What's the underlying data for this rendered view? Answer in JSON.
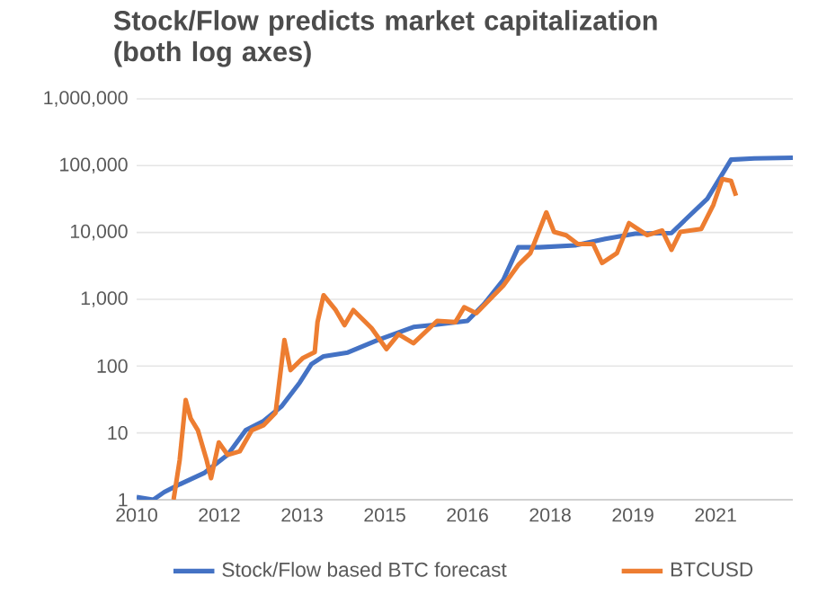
{
  "chart_data": {
    "type": "line",
    "title": "Stock/Flow predicts market capitalization (both log axes)",
    "log": "y",
    "grid": "y",
    "legend": "bottom",
    "xlim": [
      2010.5,
      2022.4
    ],
    "xticks": [
      {
        "value": 2010.5,
        "label": "2010"
      },
      {
        "value": 2012.0,
        "label": "2012"
      },
      {
        "value": 2013.5,
        "label": "2013"
      },
      {
        "value": 2015.0,
        "label": "2015"
      },
      {
        "value": 2016.5,
        "label": "2016"
      },
      {
        "value": 2018.0,
        "label": "2018"
      },
      {
        "value": 2019.5,
        "label": "2019"
      },
      {
        "value": 2021.0,
        "label": "2021"
      }
    ],
    "ylim": [
      1,
      1000000
    ],
    "yticks": [
      1,
      10,
      100,
      {
        "value": 1000,
        "label": "1,000"
      },
      {
        "value": 10000,
        "label": "10,000"
      },
      {
        "value": 100000,
        "label": "100,000"
      },
      {
        "value": 1000000,
        "label": "1,000,000"
      }
    ],
    "series": [
      {
        "name": "Stock/Flow based BTC forecast",
        "color": "#4472c4",
        "x": [
          2010.5,
          2010.8,
          2011.0,
          2011.28,
          2011.72,
          2012.15,
          2012.48,
          2012.8,
          2013.13,
          2013.46,
          2013.67,
          2013.89,
          2014.33,
          2014.87,
          2015.52,
          2015.85,
          2016.5,
          2016.8,
          2017.15,
          2017.42,
          2017.8,
          2018.45,
          2019.0,
          2019.54,
          2020.2,
          2020.5,
          2020.85,
          2021.28,
          2021.7,
          2022.4
        ],
        "values": [
          1.1,
          1.0,
          1.3,
          1.7,
          2.5,
          4.7,
          11,
          15,
          25,
          57,
          107,
          140,
          160,
          245,
          385,
          410,
          475,
          850,
          1950,
          6000,
          6000,
          6400,
          8000,
          9600,
          9800,
          17000,
          32000,
          123000,
          128000,
          131000
        ]
      },
      {
        "name": "BTCUSD",
        "color": "#ed7d31",
        "x": [
          2011.17,
          2011.28,
          2011.39,
          2011.48,
          2011.61,
          2011.77,
          2011.85,
          2011.99,
          2012.15,
          2012.37,
          2012.59,
          2012.8,
          2013.02,
          2013.18,
          2013.29,
          2013.51,
          2013.73,
          2013.78,
          2013.89,
          2014.11,
          2014.27,
          2014.43,
          2014.76,
          2015.03,
          2015.25,
          2015.52,
          2015.95,
          2016.28,
          2016.44,
          2016.66,
          2017.15,
          2017.42,
          2017.64,
          2017.93,
          2018.07,
          2018.29,
          2018.5,
          2018.78,
          2018.94,
          2019.21,
          2019.43,
          2019.76,
          2020.03,
          2020.2,
          2020.36,
          2020.74,
          2020.96,
          2021.12,
          2021.28,
          2021.37
        ],
        "values": [
          1,
          3.9,
          31,
          16.5,
          11,
          3.9,
          2.1,
          7.2,
          4.7,
          5.3,
          11,
          13,
          20,
          245,
          87,
          131,
          162,
          455,
          1150,
          690,
          410,
          690,
          370,
          180,
          300,
          220,
          475,
          455,
          760,
          620,
          1600,
          3250,
          4900,
          20000,
          10200,
          9100,
          6700,
          6700,
          3500,
          4900,
          13800,
          9100,
          10700,
          5500,
          10200,
          11300,
          26000,
          63000,
          59000,
          35500
        ]
      }
    ]
  }
}
